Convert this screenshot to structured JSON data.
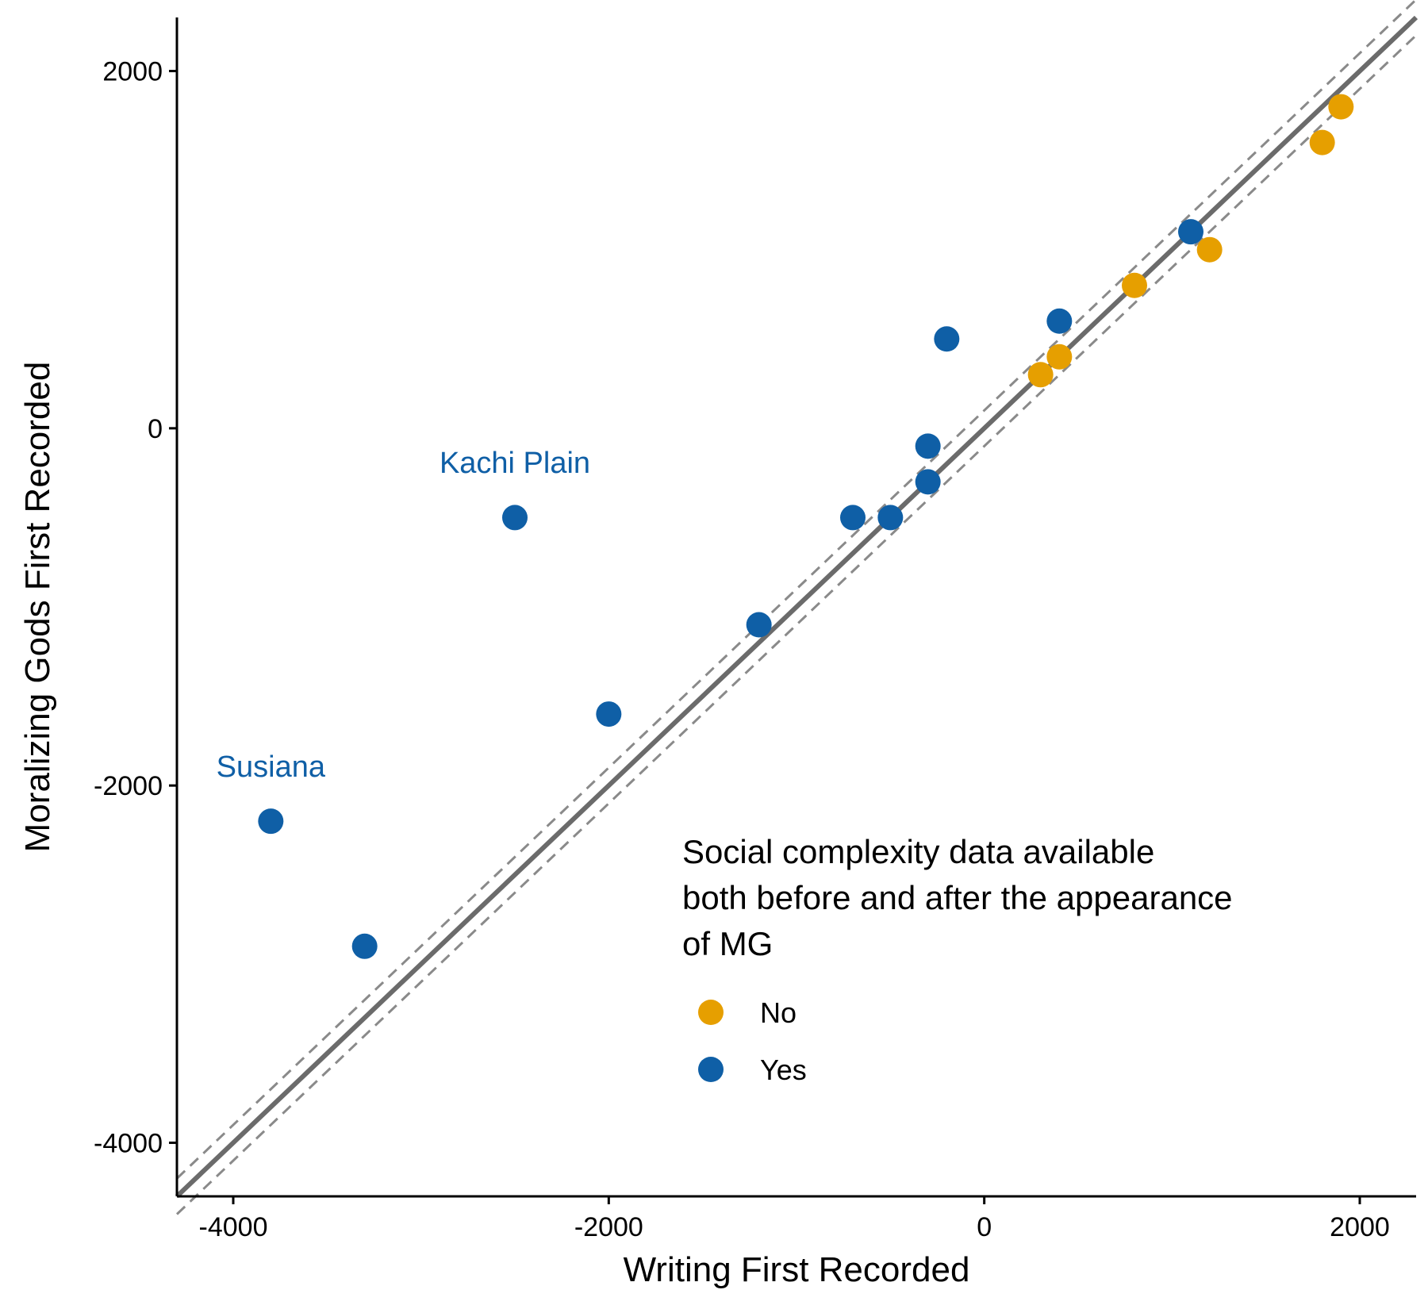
{
  "chart_data": {
    "type": "scatter",
    "title": "",
    "xlabel": "Writing First Recorded",
    "ylabel": "Moralizing Gods First Recorded",
    "xlim": [
      -4300,
      2300
    ],
    "ylim": [
      -4300,
      2300
    ],
    "xticks": [
      -4000,
      -2000,
      0,
      2000
    ],
    "yticks": [
      -4000,
      -2000,
      0,
      2000
    ],
    "xtick_labels": [
      "-4000",
      "-2000",
      "0",
      "2000"
    ],
    "ytick_labels": [
      "-4000",
      "-2000",
      "0",
      "2000"
    ],
    "reference_lines": [
      {
        "style": "solid",
        "intercept": 0,
        "slope": 1
      },
      {
        "style": "dashed",
        "intercept": 100,
        "slope": 1
      },
      {
        "style": "dashed",
        "intercept": -100,
        "slope": 1
      }
    ],
    "legend": {
      "title_lines": [
        "Social complexity data available",
        "both before and after the appearance",
        "of MG"
      ],
      "position": "bottom-right",
      "entries": [
        {
          "label": "No",
          "color": "#E69F00"
        },
        {
          "label": "Yes",
          "color": "#0F5FA6"
        }
      ]
    },
    "series": [
      {
        "name": "No",
        "color": "#E69F00",
        "points": [
          {
            "x": 300,
            "y": 300
          },
          {
            "x": 400,
            "y": 400
          },
          {
            "x": 800,
            "y": 800
          },
          {
            "x": 1200,
            "y": 1000
          },
          {
            "x": 1800,
            "y": 1600
          },
          {
            "x": 1900,
            "y": 1800
          }
        ]
      },
      {
        "name": "Yes",
        "color": "#0F5FA6",
        "points": [
          {
            "x": -3800,
            "y": -2200
          },
          {
            "x": -3300,
            "y": -2900
          },
          {
            "x": -2500,
            "y": -500
          },
          {
            "x": -2000,
            "y": -1600
          },
          {
            "x": -1200,
            "y": -1100
          },
          {
            "x": -700,
            "y": -500
          },
          {
            "x": -500,
            "y": -500
          },
          {
            "x": -300,
            "y": -100
          },
          {
            "x": -300,
            "y": -300
          },
          {
            "x": -200,
            "y": 500
          },
          {
            "x": 400,
            "y": 600
          },
          {
            "x": 1100,
            "y": 1100
          }
        ]
      }
    ],
    "annotations": [
      {
        "text": "Kachi Plain",
        "x": -2500,
        "y": -250,
        "color": "#0F5FA6"
      },
      {
        "text": "Susiana",
        "x": -3800,
        "y": -1950,
        "color": "#0F5FA6"
      }
    ]
  }
}
